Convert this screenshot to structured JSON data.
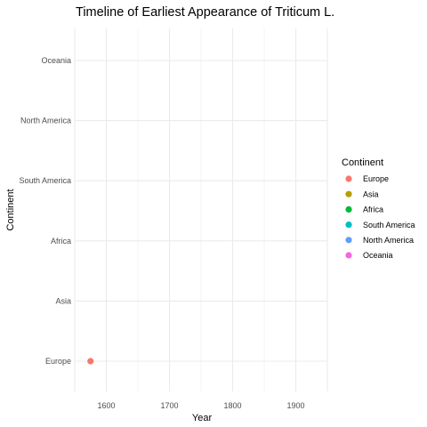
{
  "chart_data": {
    "type": "scatter",
    "title": "Timeline of Earliest Appearance of Triticum L.",
    "xlabel": "Year",
    "ylabel": "Continent",
    "xlim": [
      1550,
      1950
    ],
    "x_ticks": [
      1600,
      1700,
      1800,
      1900
    ],
    "x_minor_ticks": [
      1650,
      1750,
      1850
    ],
    "categories": [
      "Europe",
      "Asia",
      "Africa",
      "South America",
      "North America",
      "Oceania"
    ],
    "grid": true,
    "legend": {
      "title": "Continent",
      "position": "right",
      "entries": [
        {
          "name": "Europe",
          "color": "#F8766D"
        },
        {
          "name": "Asia",
          "color": "#B79F00"
        },
        {
          "name": "Africa",
          "color": "#00BA38"
        },
        {
          "name": "South America",
          "color": "#00BFC4"
        },
        {
          "name": "North America",
          "color": "#619CFF"
        },
        {
          "name": "Oceania",
          "color": "#F564E3"
        }
      ]
    },
    "points": [
      {
        "continent": "Europe",
        "x": 1575
      }
    ]
  }
}
